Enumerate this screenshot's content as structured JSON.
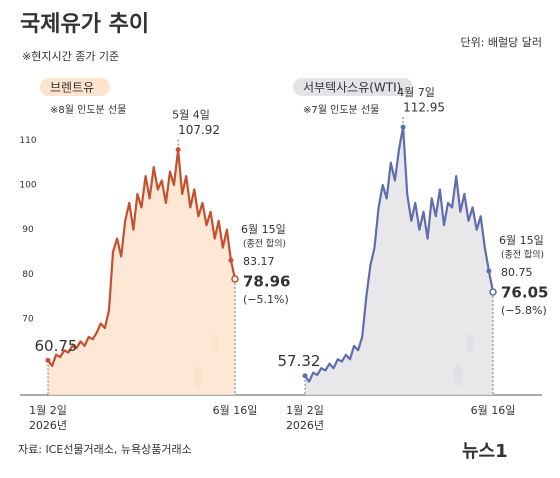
{
  "title": "국제유가 추이",
  "note": "※현지시간 종가 기준",
  "unit": "단위: 배럴당 달러",
  "source": "자료: ICE선물거래소, 뉴욕상품거래소",
  "logo": "뉴스1",
  "chart_data": [
    {
      "type": "line",
      "title": "브렌트유",
      "subtitle": "※8월 인도분 선물",
      "color": "#c4502f",
      "fill_color": "#fde4cf",
      "categories": [
        "1월 2일",
        null,
        null,
        null,
        null,
        null,
        null,
        null,
        null,
        null,
        null,
        null,
        null,
        null,
        null,
        null,
        null,
        null,
        null,
        null,
        null,
        null,
        null,
        null,
        null,
        null,
        null,
        null,
        null,
        null,
        null,
        null,
        null,
        null,
        null,
        null,
        null,
        null,
        null,
        null,
        null,
        null,
        null,
        null,
        null,
        null,
        "6월 16일"
      ],
      "year_label": "2026년",
      "values": [
        60.75,
        59.5,
        62,
        61.5,
        63,
        62.5,
        64,
        63.5,
        65,
        64,
        66,
        65.5,
        67,
        69,
        68,
        72,
        85,
        88,
        84,
        92,
        96,
        90,
        98,
        95,
        102,
        97,
        104,
        99,
        101,
        96,
        103,
        100,
        107.92,
        98,
        102,
        95,
        99,
        93,
        96,
        91,
        94,
        88,
        92,
        86,
        90,
        83.17,
        78.96
      ],
      "peak_label": "5월 4일",
      "event_label": "6월 15일",
      "event_note": "(종전 합의)",
      "change_label": "(−5.1%)",
      "ylim": [
        53,
        115
      ],
      "yticks": [
        70,
        80,
        90,
        100,
        110
      ]
    },
    {
      "type": "line",
      "title": "서부텍사스유(WTI)",
      "subtitle": "※7월 인도분 선물",
      "color": "#5f6db0",
      "fill_color": "#e4e4e8",
      "categories": [
        "1월 2일",
        null,
        null,
        null,
        null,
        null,
        null,
        null,
        null,
        null,
        null,
        null,
        null,
        null,
        null,
        null,
        null,
        null,
        null,
        null,
        null,
        null,
        null,
        null,
        null,
        null,
        null,
        null,
        null,
        null,
        null,
        null,
        null,
        null,
        null,
        null,
        null,
        null,
        null,
        null,
        null,
        null,
        null,
        null,
        null,
        null,
        "6월 16일"
      ],
      "year_label": "2026년",
      "values": [
        57.32,
        56,
        58,
        57.5,
        59,
        58.5,
        60,
        59,
        61,
        60.5,
        62,
        61,
        64,
        63,
        66,
        75,
        82,
        86,
        95,
        100,
        97,
        105,
        101,
        108,
        112.95,
        98,
        92,
        96,
        90,
        94,
        88,
        97,
        93,
        99,
        91,
        96,
        95,
        102,
        94,
        98,
        92,
        95,
        90,
        93,
        86,
        80.75,
        76.05
      ],
      "peak_label": "4월 7일",
      "event_label": "6월 15일",
      "event_note": "(종전 합의)",
      "change_label": "(−5.8%)",
      "ylim": [
        53,
        115
      ]
    }
  ]
}
